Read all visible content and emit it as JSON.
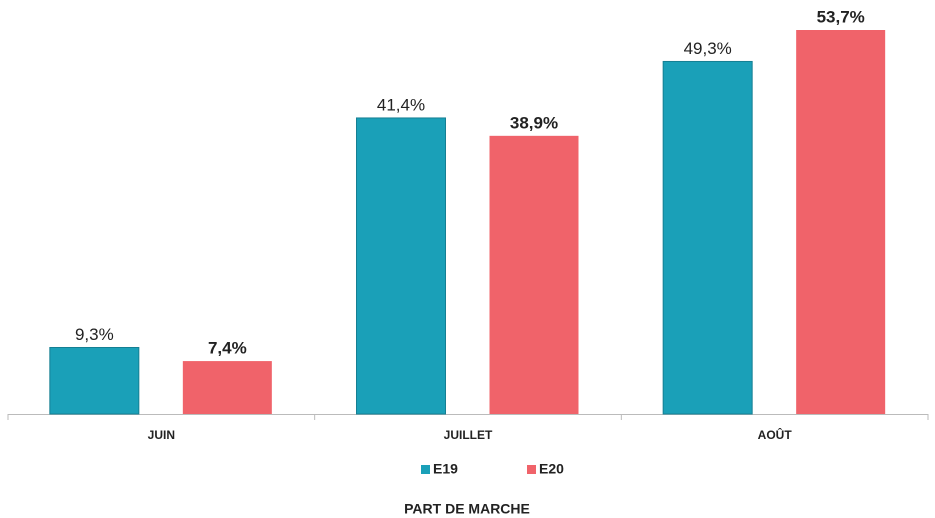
{
  "chart_data": {
    "type": "bar",
    "x_label": "PART DE MARCHE",
    "categories": [
      "JUIN",
      "JUILLET",
      "AOÛT"
    ],
    "series": [
      {
        "name": "E19",
        "color": "#1aa0b8",
        "values": [
          9.3,
          41.4,
          49.3
        ],
        "value_labels": [
          "9,3%",
          "41,4%",
          "49,3%"
        ]
      },
      {
        "name": "E20",
        "color": "#f0636a",
        "values": [
          7.4,
          38.9,
          53.7
        ],
        "value_labels": [
          "7,4%",
          "38,9%",
          "53,7%"
        ]
      }
    ]
  }
}
